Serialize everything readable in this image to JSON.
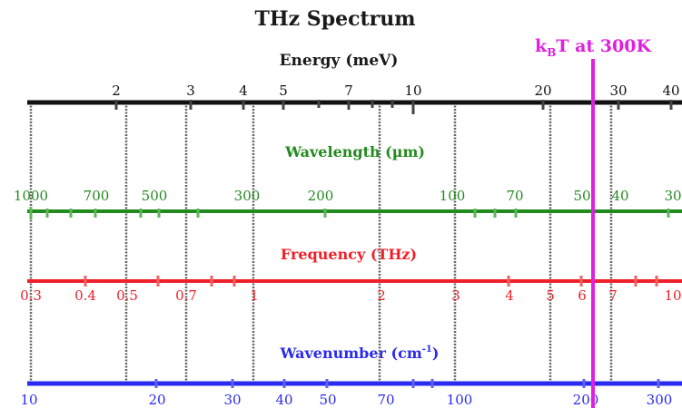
{
  "title": "THz Spectrum",
  "annotation": {
    "prefix": "k",
    "subscript": "B",
    "suffix": "T at 300K",
    "color": "#e020e0"
  },
  "energy": {
    "label": "Energy (meV)",
    "color": "#111111",
    "ticks": [
      "2",
      "3",
      "4",
      "5",
      "7",
      "10",
      "20",
      "30",
      "40"
    ]
  },
  "wavelength": {
    "label": "Wavelength (µm)",
    "color": "#238a1e",
    "ticks": [
      "1000",
      "700",
      "500",
      "300",
      "200",
      "100",
      "70",
      "50",
      "40",
      "30"
    ]
  },
  "frequency": {
    "label": "Frequency (THz)",
    "color": "#f0202a",
    "ticks": [
      "0.3",
      "0.4",
      "0.5",
      "0.7",
      "1",
      "2",
      "3",
      "4",
      "5",
      "6",
      "7",
      "10"
    ]
  },
  "wavenumber": {
    "label_main": "Wavenumber (cm",
    "label_sup": "-1",
    "label_end": ")",
    "color": "#2a2af0",
    "ticks": [
      "10",
      "20",
      "30",
      "40",
      "50",
      "70",
      "100",
      "200",
      "300"
    ]
  }
}
